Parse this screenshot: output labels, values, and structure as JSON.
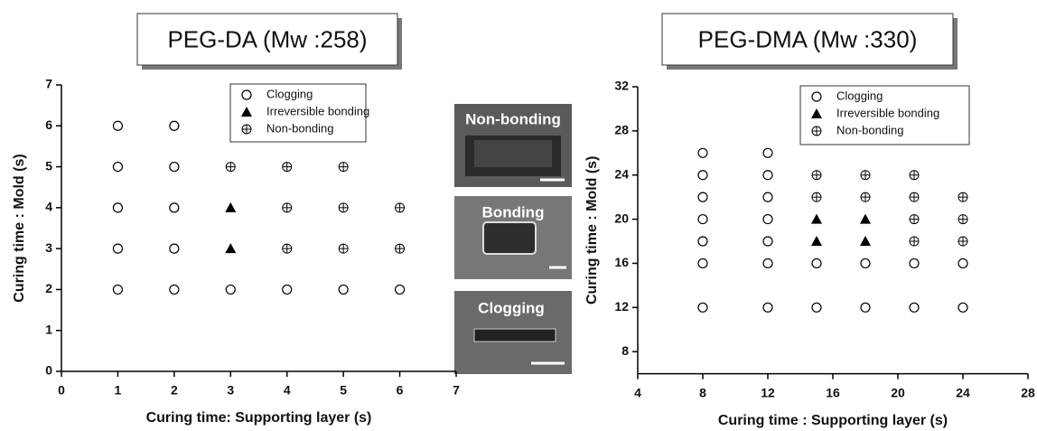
{
  "chart_data": [
    {
      "type": "scatter",
      "title": "PEG-DA (Mw :258)",
      "x_label": "Curing time: Supporting layer (s)",
      "y_label": "Curing time : Mold (s)",
      "xlim": [
        0,
        7
      ],
      "ylim": [
        0,
        7
      ],
      "xticks": [
        0,
        1,
        2,
        3,
        4,
        5,
        6,
        7
      ],
      "yticks": [
        0,
        1,
        2,
        3,
        4,
        5,
        6,
        7
      ],
      "series": [
        {
          "name": "Clogging",
          "marker": "circle",
          "color": "#000000",
          "x": [
            1,
            1,
            1,
            1,
            1,
            2,
            2,
            2,
            2,
            2,
            3,
            4,
            5,
            6
          ],
          "values": [
            2,
            3,
            4,
            5,
            6,
            2,
            3,
            4,
            5,
            6,
            2,
            2,
            2,
            2
          ]
        },
        {
          "name": "Irreversible bonding",
          "marker": "triangle",
          "color": "#000000",
          "x": [
            3,
            3
          ],
          "values": [
            3,
            4
          ]
        },
        {
          "name": "Non-bonding",
          "marker": "circle-plus",
          "color": "#000000",
          "x": [
            3,
            4,
            4,
            4,
            5,
            5,
            5,
            6,
            6
          ],
          "values": [
            5,
            3,
            4,
            5,
            3,
            4,
            5,
            3,
            4
          ]
        }
      ],
      "annotations": [
        "Non-bonding",
        "Bonding",
        "Clogging"
      ]
    },
    {
      "type": "scatter",
      "title": "PEG-DMA (Mw :330)",
      "x_label": "Curing time : Supporting layer (s)",
      "y_label": "Curing time : Mold (s)",
      "xlim": [
        4,
        28
      ],
      "ylim": [
        6,
        32
      ],
      "xticks": [
        4,
        8,
        12,
        16,
        20,
        24,
        28
      ],
      "yticks": [
        8,
        12,
        16,
        20,
        24,
        28,
        32
      ],
      "series": [
        {
          "name": "Clogging",
          "marker": "circle",
          "color": "#000000",
          "x": [
            8,
            8,
            8,
            8,
            8,
            8,
            8,
            12,
            12,
            12,
            12,
            12,
            12,
            12,
            15,
            15,
            18,
            18,
            21,
            21,
            24,
            24
          ],
          "values": [
            12,
            16,
            18,
            20,
            22,
            24,
            26,
            12,
            16,
            18,
            20,
            22,
            24,
            26,
            12,
            16,
            12,
            16,
            12,
            16,
            12,
            16
          ]
        },
        {
          "name": "Irreversible bonding",
          "marker": "triangle",
          "color": "#000000",
          "x": [
            15,
            15,
            18,
            18
          ],
          "values": [
            18,
            20,
            18,
            20
          ]
        },
        {
          "name": "Non-bonding",
          "marker": "circle-plus",
          "color": "#000000",
          "x": [
            15,
            15,
            18,
            18,
            21,
            21,
            21,
            21,
            24,
            24,
            24
          ],
          "values": [
            22,
            24,
            22,
            24,
            18,
            20,
            22,
            24,
            18,
            20,
            22
          ]
        }
      ]
    }
  ]
}
